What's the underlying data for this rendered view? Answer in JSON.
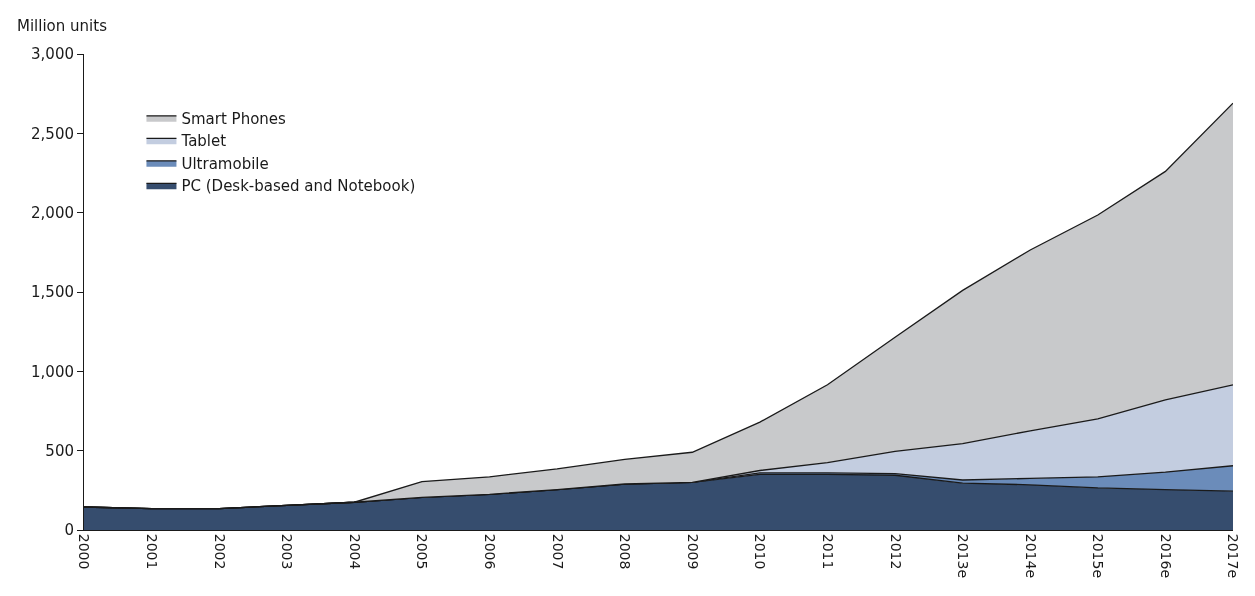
{
  "chart_data": {
    "type": "area",
    "stacked": true,
    "ylabel": "Million units",
    "categories": [
      "2000",
      "2001",
      "2002",
      "2003",
      "2004",
      "2005",
      "2006",
      "2007",
      "2008",
      "2009",
      "2010",
      "2011",
      "2012",
      "2013e",
      "2014e",
      "2015e",
      "2016e",
      "2017e"
    ],
    "series": [
      {
        "name": "PC (Desk-based and Notebook)",
        "color": "#364d6e",
        "values": [
          145,
          135,
          135,
          155,
          175,
          205,
          225,
          255,
          290,
          300,
          350,
          350,
          345,
          295,
          285,
          265,
          255,
          245
        ]
      },
      {
        "name": "Ultramobile",
        "color": "#6b8cba",
        "values": [
          0,
          0,
          0,
          0,
          0,
          0,
          0,
          0,
          0,
          0,
          10,
          10,
          10,
          20,
          40,
          70,
          110,
          160
        ]
      },
      {
        "name": "Tablet",
        "color": "#c3cde0",
        "values": [
          0,
          0,
          0,
          0,
          0,
          0,
          0,
          0,
          0,
          0,
          15,
          65,
          140,
          230,
          300,
          365,
          455,
          510
        ]
      },
      {
        "name": "Smart Phones",
        "color": "#c8c9cb",
        "values": [
          0,
          0,
          0,
          0,
          0,
          100,
          110,
          130,
          155,
          190,
          305,
          490,
          720,
          965,
          1140,
          1285,
          1440,
          1775
        ]
      }
    ],
    "ylim": [
      0,
      3000
    ],
    "yticks": [
      {
        "value": 0,
        "label": "0"
      },
      {
        "value": 500,
        "label": "500"
      },
      {
        "value": 1000,
        "label": "1,000"
      },
      {
        "value": 1500,
        "label": "1,500"
      },
      {
        "value": 2000,
        "label": "2,000"
      },
      {
        "value": 2500,
        "label": "2,500"
      },
      {
        "value": 3000,
        "label": "3,000"
      }
    ],
    "grid": false,
    "legend": "top left"
  }
}
